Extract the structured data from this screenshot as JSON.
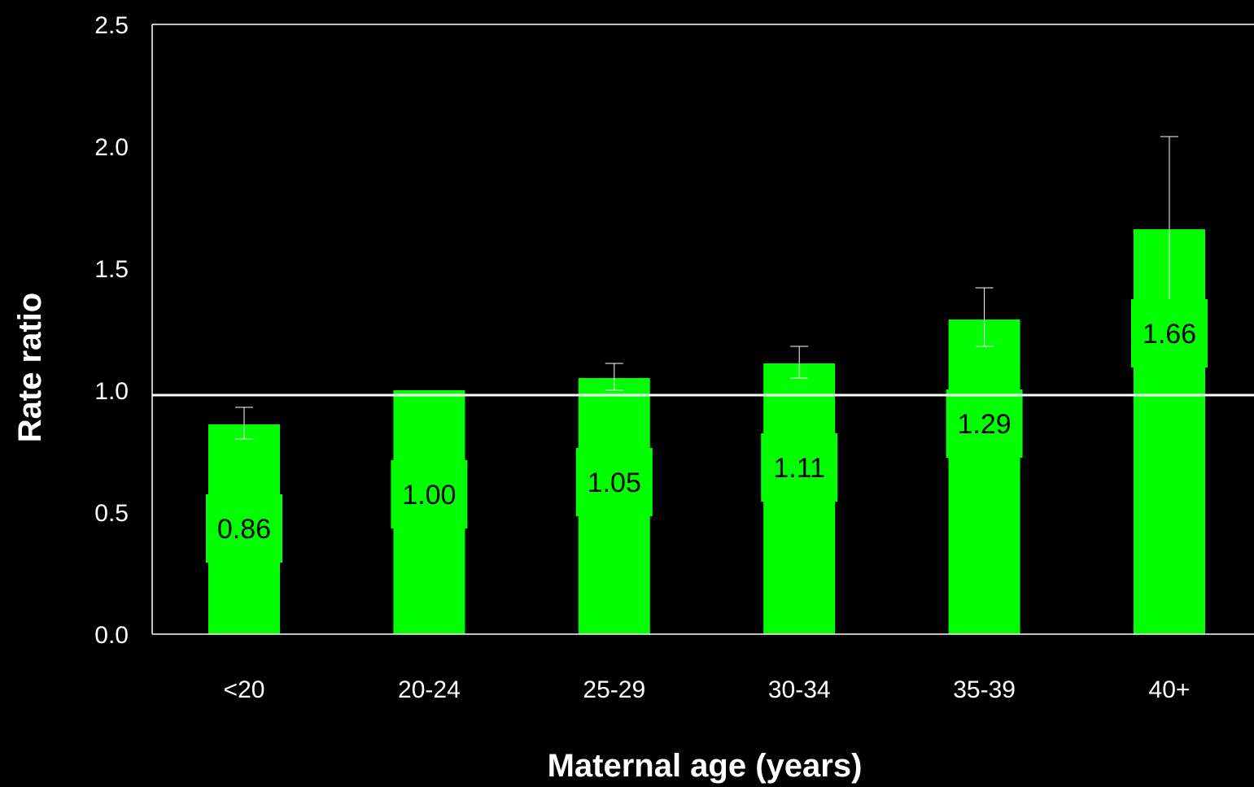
{
  "chart_data": {
    "type": "bar",
    "categories": [
      "<20",
      "20-24",
      "25-29",
      "30-34",
      "35-39",
      "40+"
    ],
    "values": [
      0.86,
      1.0,
      1.05,
      1.11,
      1.29,
      1.66
    ],
    "value_labels": [
      "0.86",
      "1.00",
      "1.05",
      "1.11",
      "1.29",
      "1.66"
    ],
    "error_low": [
      0.8,
      null,
      1.0,
      1.05,
      1.18,
      1.35
    ],
    "error_high": [
      0.93,
      null,
      1.11,
      1.18,
      1.42,
      2.04
    ],
    "reference_line": 1.0,
    "xlabel": "Maternal age (years)",
    "ylabel": "Rate ratio",
    "ylim": [
      0,
      2.5
    ],
    "yticks": [
      "0.0",
      "0.5",
      "1.0",
      "1.5",
      "2.0",
      "2.5"
    ],
    "grid": false,
    "colors": {
      "background": "#000000",
      "bar": "#00FF00",
      "axis": "#FFFFFF",
      "text": "#FFFFFF",
      "value_label": "#000000"
    }
  }
}
